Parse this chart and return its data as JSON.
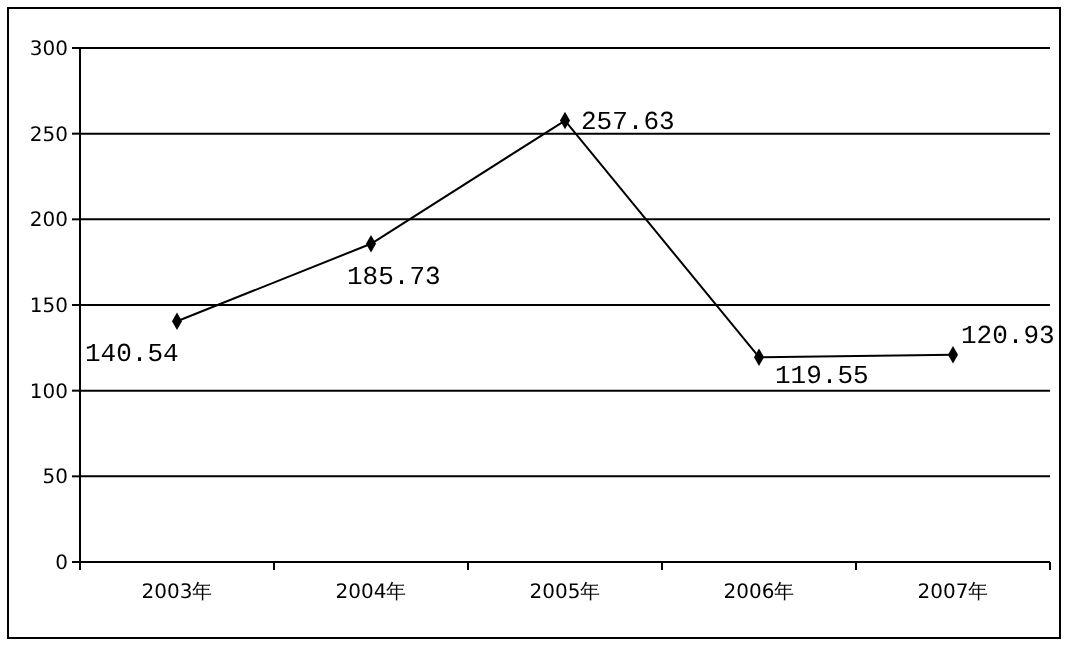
{
  "chart_data": {
    "type": "line",
    "categories": [
      "2003年",
      "2004年",
      "2005年",
      "2006年",
      "2007年"
    ],
    "series": [
      {
        "color": "#000000",
        "values": [
          140.54,
          185.73,
          257.63,
          119.55,
          120.93
        ]
      }
    ],
    "ylim": [
      0,
      300
    ],
    "yticks": [
      0,
      50,
      100,
      150,
      200,
      250,
      300
    ],
    "grid": "y",
    "marker": "diamond",
    "line_style": "solid",
    "data_labels": true
  }
}
